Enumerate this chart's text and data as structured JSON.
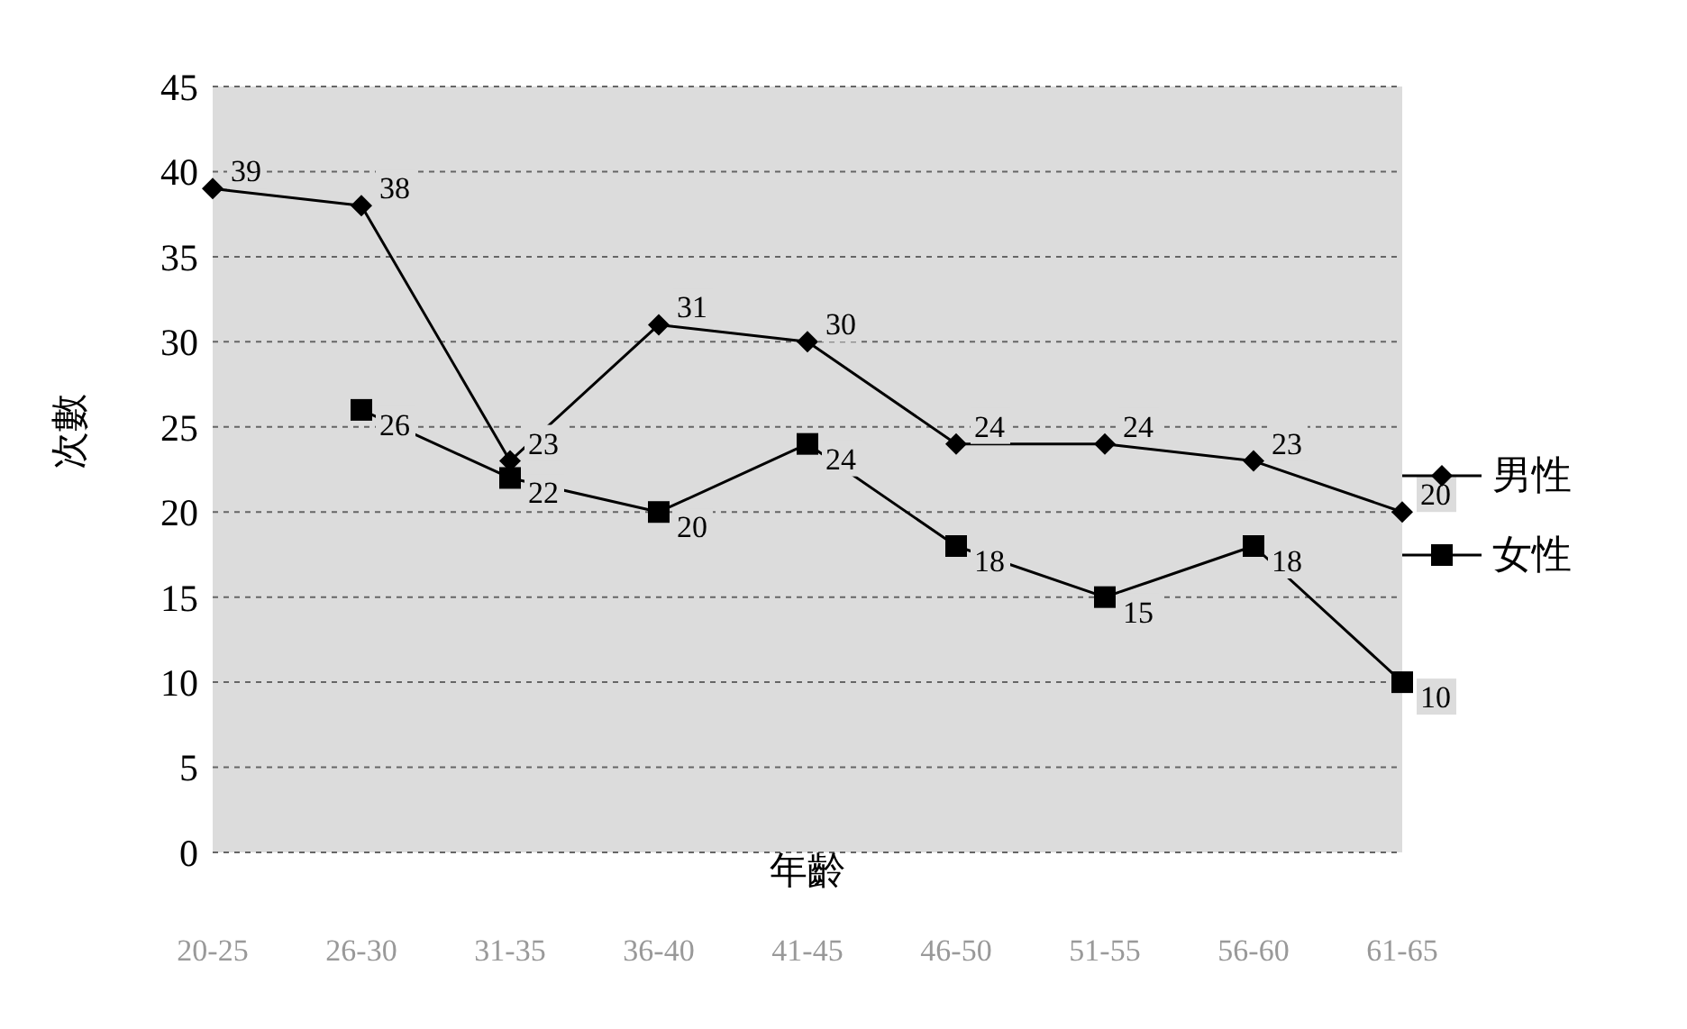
{
  "chart_data": {
    "type": "line",
    "xlabel": "年齡",
    "ylabel": "次數",
    "categories": [
      "20-25",
      "26-30",
      "31-35",
      "36-40",
      "41-45",
      "46-50",
      "51-55",
      "56-60",
      "61-65"
    ],
    "series": [
      {
        "name": "男性",
        "color": "#000000",
        "marker": "diamond",
        "values": [
          39,
          38,
          23,
          31,
          30,
          24,
          24,
          23,
          20
        ]
      },
      {
        "name": "女性",
        "color": "#000000",
        "marker": "square",
        "values": [
          null,
          26,
          22,
          20,
          24,
          18,
          15,
          18,
          10
        ]
      }
    ],
    "ylim": [
      0,
      45
    ],
    "yticks": [
      0,
      5,
      10,
      15,
      20,
      25,
      30,
      35,
      40,
      45
    ],
    "grid": "y",
    "legend": "right",
    "data_labels": true
  }
}
